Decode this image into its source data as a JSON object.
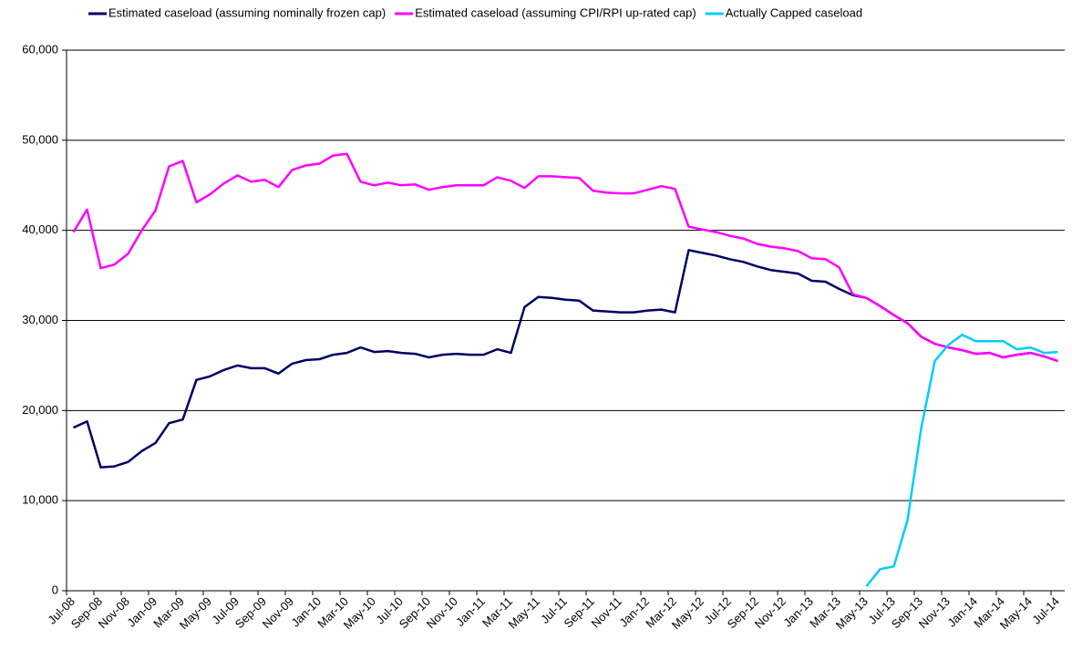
{
  "chart_data": {
    "type": "line",
    "categories": [
      "Jul-08",
      null,
      "Sep-08",
      null,
      "Nov-08",
      null,
      "Jan-09",
      null,
      "Mar-09",
      null,
      "May-09",
      null,
      "Jul-09",
      null,
      "Sep-09",
      null,
      "Nov-09",
      null,
      "Jan-10",
      null,
      "Mar-10",
      null,
      "May-10",
      null,
      "Jul-10",
      null,
      "Sep-10",
      null,
      "Nov-10",
      null,
      "Jan-11",
      null,
      "Mar-11",
      null,
      "May-11",
      null,
      "Jul-11",
      null,
      "Sep-11",
      null,
      "Nov-11",
      null,
      "Jan-12",
      null,
      "Mar-12",
      null,
      "May-12",
      null,
      "Jul-12",
      null,
      "Sep-12",
      null,
      "Nov-12",
      null,
      "Jan-13",
      null,
      "Mar-13",
      null,
      "May-13",
      null,
      "Jul-13",
      null,
      "Sep-13",
      null,
      "Nov-13",
      null,
      "Jan-14",
      null,
      "Mar-14",
      null,
      "May-14",
      null,
      "Jul-14"
    ],
    "series": [
      {
        "name": "Estimated caseload (assuming nominally frozen cap)",
        "color": "#000066",
        "values": [
          18100,
          18800,
          13700,
          13800,
          14300,
          15500,
          16400,
          18600,
          19000,
          23400,
          23800,
          24500,
          25000,
          24700,
          24700,
          24100,
          25200,
          25600,
          25700,
          26200,
          26400,
          27000,
          26500,
          26600,
          26400,
          26300,
          25900,
          26200,
          26300,
          26200,
          26200,
          26800,
          26400,
          31500,
          32600,
          32500,
          32300,
          32200,
          31100,
          31000,
          30900,
          30900,
          31100,
          31200,
          30900,
          37800,
          37500,
          37200,
          36800,
          36500,
          36000,
          35600,
          35400,
          35200,
          34400,
          34300,
          33500,
          32800,
          32500,
          31600,
          30600,
          29700,
          28200,
          27400,
          27000,
          26700,
          26300,
          26400,
          25900,
          26200,
          26400,
          26000,
          25500
        ]
      },
      {
        "name": "Estimated caseload (assuming CPI/RPI up-rated cap)",
        "color": "#ff00ff",
        "values": [
          39800,
          42300,
          35800,
          36200,
          37400,
          40000,
          42200,
          47100,
          47700,
          43100,
          44000,
          45200,
          46100,
          45400,
          45600,
          44800,
          46700,
          47200,
          47400,
          48300,
          48500,
          45400,
          45000,
          45300,
          45000,
          45100,
          44500,
          44800,
          45000,
          45000,
          45000,
          45900,
          45500,
          44700,
          46000,
          46000,
          45900,
          45800,
          44400,
          44200,
          44100,
          44100,
          44500,
          44900,
          44600,
          40400,
          40100,
          39800,
          39400,
          39100,
          38500,
          38200,
          38000,
          37700,
          36900,
          36800,
          35900,
          32900,
          32500,
          31600,
          30600,
          29700,
          28200,
          27400,
          27000,
          26700,
          26300,
          26400,
          25900,
          26200,
          26400,
          26000,
          25500
        ]
      },
      {
        "name": "Actually Capped caseload",
        "color": "#00ccff",
        "values": [
          null,
          null,
          null,
          null,
          null,
          null,
          null,
          null,
          null,
          null,
          null,
          null,
          null,
          null,
          null,
          null,
          null,
          null,
          null,
          null,
          null,
          null,
          null,
          null,
          null,
          null,
          null,
          null,
          null,
          null,
          null,
          null,
          null,
          null,
          null,
          null,
          null,
          null,
          null,
          null,
          null,
          null,
          null,
          null,
          null,
          null,
          null,
          null,
          null,
          null,
          null,
          null,
          null,
          null,
          null,
          null,
          null,
          null,
          500,
          2400,
          2700,
          7800,
          18000,
          25500,
          27300,
          28400,
          27700,
          27700,
          27700,
          26800,
          27000,
          26400,
          26500
        ]
      }
    ],
    "ylim": [
      0,
      60000
    ],
    "yticks": [
      0,
      {
        "value": 10000,
        "label": "10,000"
      },
      {
        "value": 20000,
        "label": "20,000"
      },
      {
        "value": 30000,
        "label": "30,000"
      },
      {
        "value": 40000,
        "label": "40,000"
      },
      {
        "value": 50000,
        "label": "50,000"
      },
      {
        "value": 60000,
        "label": "60,000"
      }
    ],
    "grid": true,
    "legend": "top"
  }
}
